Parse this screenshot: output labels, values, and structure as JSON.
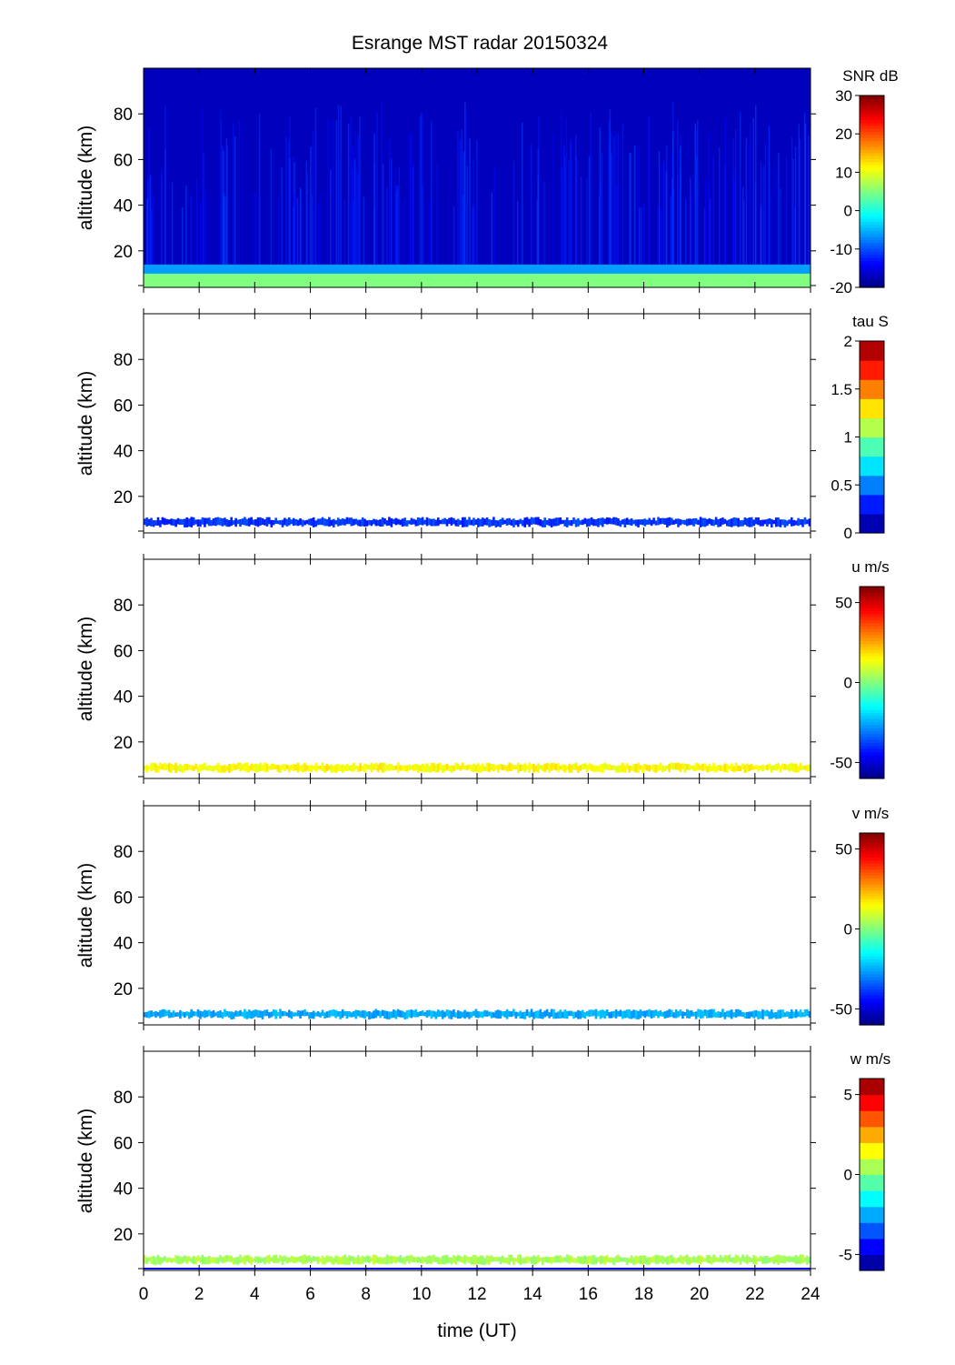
{
  "chart_data": {
    "type": "heatmap",
    "title": "Esrange MST radar 20150324",
    "xlabel": "time (UT)",
    "xlim": [
      0,
      24
    ],
    "x_ticks": [
      "0",
      "2",
      "4",
      "6",
      "8",
      "10",
      "12",
      "14",
      "16",
      "18",
      "20",
      "22",
      "24"
    ],
    "panels": [
      {
        "name": "snr",
        "ylabel": "altitude (km)",
        "ylim": [
          4,
          100
        ],
        "y_ticks": [
          "20",
          "40",
          "60",
          "80"
        ],
        "colorbar_label": "SNR dB",
        "colorbar_range": [
          -20,
          30
        ],
        "colorbar_ticks": [
          "-20",
          "-10",
          "0",
          "10",
          "20",
          "30"
        ],
        "colormap": "jet",
        "data_description_values": {
          "background_dB": -17,
          "tropo_dB": 5
        }
      },
      {
        "name": "tau",
        "ylabel": "altitude (km)",
        "ylim": [
          4,
          100
        ],
        "y_ticks": [
          "20",
          "40",
          "60",
          "80"
        ],
        "colorbar_label": "tau S",
        "colorbar_range": [
          0,
          2
        ],
        "colorbar_ticks": [
          "0",
          "0.5",
          "1",
          "1.5",
          "2"
        ],
        "colormap": "jet-10",
        "value_in_layer": 0.35
      },
      {
        "name": "u",
        "ylabel": "altitude (km)",
        "ylim": [
          4,
          100
        ],
        "y_ticks": [
          "20",
          "40",
          "60",
          "80"
        ],
        "colorbar_label": "u m/s",
        "colorbar_range": [
          -60,
          60
        ],
        "colorbar_ticks": [
          "-50",
          "0",
          "50"
        ],
        "colormap": "jet",
        "value_in_layer": 15
      },
      {
        "name": "v",
        "ylabel": "altitude (km)",
        "ylim": [
          4,
          100
        ],
        "y_ticks": [
          "20",
          "40",
          "60",
          "80"
        ],
        "colorbar_label": "v m/s",
        "colorbar_range": [
          -60,
          60
        ],
        "colorbar_ticks": [
          "-50",
          "0",
          "50"
        ],
        "colormap": "jet",
        "value_in_layer": -25
      },
      {
        "name": "w",
        "ylabel": "altitude (km)",
        "ylim": [
          4,
          100
        ],
        "y_ticks": [
          "20",
          "40",
          "60",
          "80"
        ],
        "colorbar_label": "w m/s",
        "colorbar_range": [
          -6,
          6
        ],
        "colorbar_ticks": [
          "-5",
          "0",
          "5"
        ],
        "colormap": "jet-12",
        "value_in_layer": 0.5
      }
    ]
  }
}
